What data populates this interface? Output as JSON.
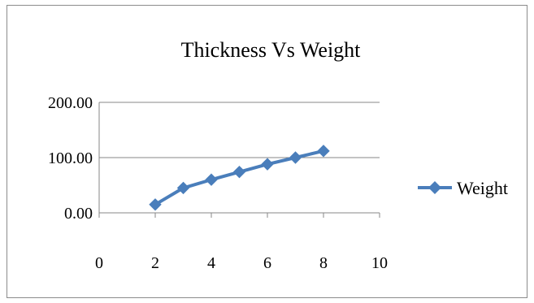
{
  "chart_data": {
    "type": "scatter",
    "title": "Thickness Vs Weight",
    "xlabel": "",
    "ylabel": "",
    "x": [
      2,
      3,
      4,
      5,
      6,
      7,
      8
    ],
    "series": [
      {
        "name": "Weight",
        "values": [
          15,
          45,
          60,
          74,
          88,
          100,
          112
        ]
      }
    ],
    "xlim": [
      0,
      10
    ],
    "ylim": [
      0,
      200
    ],
    "xticks": [
      "0",
      "2",
      "4",
      "6",
      "8",
      "10"
    ],
    "yticks": [
      "0.00",
      "100.00",
      "200.00"
    ],
    "grid": "horizontal",
    "legend": "right",
    "series_color": "#4a7ebb",
    "marker": "diamond"
  }
}
